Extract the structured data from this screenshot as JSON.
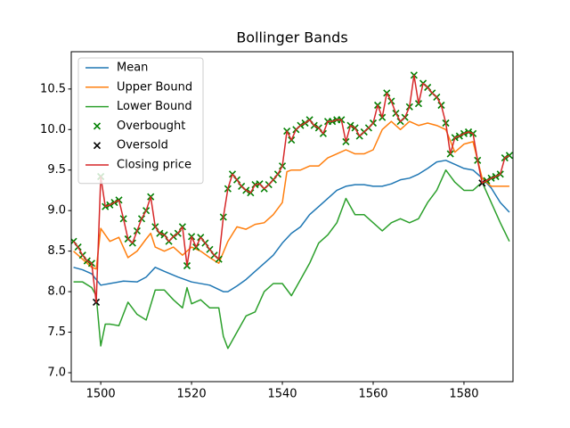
{
  "chart_data": {
    "type": "line",
    "title": "Bollinger Bands",
    "xlim": [
      1493.5,
      1590.8
    ],
    "ylim": [
      6.89,
      10.96
    ],
    "xticks": [
      1500,
      1520,
      1540,
      1560,
      1580
    ],
    "yticks": [
      {
        "value": 7.0,
        "label": "7.0"
      },
      7.5,
      {
        "value": 8.0,
        "label": "8.0"
      },
      8.5,
      {
        "value": 9.0,
        "label": "9.0"
      },
      9.5,
      {
        "value": 10.0,
        "label": "10.0"
      },
      10.5
    ],
    "legend": "upper left",
    "grid": false,
    "series": [
      {
        "name": "Mean",
        "type": "line",
        "color": "#1f77b4",
        "x": [
          1494,
          1496,
          1498,
          1500,
          1502,
          1505,
          1508,
          1510,
          1512,
          1514,
          1517,
          1520,
          1524,
          1527,
          1528,
          1530,
          1532,
          1534,
          1536,
          1538,
          1540,
          1542,
          1544,
          1546,
          1548,
          1550,
          1552,
          1554,
          1556,
          1558,
          1560,
          1562,
          1564,
          1566,
          1568,
          1570,
          1572,
          1574,
          1576,
          1578,
          1580,
          1582,
          1584,
          1586,
          1588,
          1590
        ],
        "values": [
          8.3,
          8.27,
          8.22,
          8.08,
          8.1,
          8.13,
          8.12,
          8.18,
          8.3,
          8.25,
          8.18,
          8.12,
          8.08,
          8.0,
          8.0,
          8.07,
          8.15,
          8.25,
          8.35,
          8.45,
          8.6,
          8.72,
          8.8,
          8.95,
          9.05,
          9.15,
          9.25,
          9.3,
          9.32,
          9.32,
          9.3,
          9.3,
          9.33,
          9.38,
          9.4,
          9.45,
          9.52,
          9.6,
          9.62,
          9.57,
          9.52,
          9.5,
          9.4,
          9.28,
          9.1,
          8.98
        ]
      },
      {
        "name": "Upper Bound",
        "type": "line",
        "color": "#ff7f0e",
        "x": [
          1494,
          1496,
          1498,
          1499,
          1500,
          1502,
          1504,
          1506,
          1508,
          1510,
          1511,
          1512,
          1514,
          1516,
          1518,
          1520,
          1522,
          1524,
          1526,
          1528,
          1530,
          1532,
          1534,
          1536,
          1538,
          1540,
          1541,
          1542,
          1544,
          1546,
          1548,
          1550,
          1552,
          1554,
          1556,
          1558,
          1560,
          1562,
          1564,
          1566,
          1568,
          1570,
          1572,
          1574,
          1576,
          1578,
          1580,
          1582,
          1584,
          1586,
          1588,
          1590
        ],
        "values": [
          8.5,
          8.4,
          8.3,
          8.28,
          8.78,
          8.62,
          8.67,
          8.42,
          8.5,
          8.65,
          8.72,
          8.55,
          8.5,
          8.55,
          8.45,
          8.55,
          8.5,
          8.42,
          8.35,
          8.62,
          8.8,
          8.77,
          8.83,
          8.85,
          8.95,
          9.1,
          9.48,
          9.5,
          9.5,
          9.55,
          9.55,
          9.65,
          9.7,
          9.75,
          9.7,
          9.7,
          9.75,
          10.0,
          10.1,
          10.0,
          10.1,
          10.05,
          10.08,
          10.05,
          10.0,
          9.72,
          9.82,
          9.85,
          9.4,
          9.3,
          9.3,
          9.3
        ]
      },
      {
        "name": "Lower Bound",
        "type": "line",
        "color": "#2ca02c",
        "x": [
          1494,
          1496,
          1498,
          1499,
          1500,
          1501,
          1502,
          1504,
          1506,
          1508,
          1510,
          1512,
          1514,
          1516,
          1518,
          1519,
          1520,
          1522,
          1524,
          1526,
          1527,
          1528,
          1530,
          1532,
          1534,
          1536,
          1538,
          1540,
          1542,
          1544,
          1546,
          1548,
          1550,
          1552,
          1554,
          1556,
          1558,
          1560,
          1562,
          1564,
          1566,
          1568,
          1570,
          1572,
          1574,
          1576,
          1578,
          1580,
          1582,
          1584,
          1586,
          1588,
          1590
        ],
        "values": [
          8.12,
          8.12,
          8.05,
          7.95,
          7.33,
          7.6,
          7.6,
          7.58,
          7.87,
          7.72,
          7.65,
          8.02,
          8.02,
          7.9,
          7.8,
          8.05,
          7.85,
          7.9,
          7.8,
          7.8,
          7.45,
          7.3,
          7.5,
          7.7,
          7.75,
          8.0,
          8.1,
          8.1,
          7.95,
          8.15,
          8.35,
          8.6,
          8.7,
          8.85,
          9.15,
          8.95,
          8.95,
          8.85,
          8.75,
          8.85,
          8.9,
          8.85,
          8.9,
          9.1,
          9.25,
          9.5,
          9.35,
          9.25,
          9.25,
          9.35,
          9.1,
          8.85,
          8.62
        ]
      },
      {
        "name": "Overbought",
        "type": "scatter",
        "color": "#008000",
        "x": [
          1494,
          1495,
          1496,
          1497,
          1498,
          1500,
          1501,
          1502,
          1503,
          1504,
          1505,
          1506,
          1507,
          1508,
          1509,
          1510,
          1511,
          1512,
          1513,
          1514,
          1515,
          1516,
          1517,
          1518,
          1519,
          1520,
          1521,
          1522,
          1523,
          1524,
          1525,
          1526,
          1527,
          1528,
          1529,
          1530,
          1531,
          1532,
          1533,
          1534,
          1535,
          1536,
          1537,
          1538,
          1539,
          1540,
          1541,
          1542,
          1543,
          1544,
          1545,
          1546,
          1547,
          1548,
          1549,
          1550,
          1551,
          1552,
          1553,
          1554,
          1555,
          1556,
          1557,
          1558,
          1559,
          1560,
          1561,
          1562,
          1563,
          1564,
          1565,
          1566,
          1567,
          1568,
          1569,
          1570,
          1571,
          1572,
          1573,
          1574,
          1575,
          1576,
          1577,
          1578,
          1579,
          1580,
          1581,
          1582,
          1583,
          1585,
          1586,
          1587,
          1588,
          1589,
          1590
        ],
        "values": [
          8.62,
          8.55,
          8.45,
          8.38,
          8.35,
          9.42,
          9.05,
          9.07,
          9.1,
          9.13,
          8.9,
          8.65,
          8.6,
          8.75,
          8.9,
          9.0,
          9.17,
          8.8,
          8.72,
          8.7,
          8.62,
          8.68,
          8.72,
          8.8,
          8.32,
          8.68,
          8.55,
          8.67,
          8.6,
          8.52,
          8.45,
          8.4,
          8.92,
          9.27,
          9.45,
          9.38,
          9.3,
          9.25,
          9.22,
          9.32,
          9.33,
          9.27,
          9.32,
          9.38,
          9.45,
          9.55,
          9.98,
          9.87,
          10.0,
          10.05,
          10.08,
          10.12,
          10.05,
          10.02,
          9.95,
          10.1,
          10.1,
          10.12,
          10.12,
          9.85,
          10.05,
          10.02,
          9.92,
          9.97,
          10.02,
          10.08,
          10.3,
          10.15,
          10.45,
          10.35,
          10.2,
          10.1,
          10.15,
          10.28,
          10.67,
          10.32,
          10.57,
          10.52,
          10.45,
          10.4,
          10.3,
          10.08,
          9.7,
          9.9,
          9.92,
          9.95,
          9.97,
          9.95,
          9.62,
          9.37,
          9.4,
          9.42,
          9.45,
          9.65,
          9.68
        ]
      },
      {
        "name": "Oversold",
        "type": "scatter",
        "color": "#000000",
        "x": [
          1499,
          1584
        ],
        "values": [
          7.87,
          9.34
        ]
      },
      {
        "name": "Closing price",
        "type": "line",
        "color": "#d62728",
        "x": [
          1494,
          1495,
          1496,
          1497,
          1498,
          1499,
          1500,
          1501,
          1502,
          1503,
          1504,
          1505,
          1506,
          1507,
          1508,
          1509,
          1510,
          1511,
          1512,
          1513,
          1514,
          1515,
          1516,
          1517,
          1518,
          1519,
          1520,
          1521,
          1522,
          1523,
          1524,
          1525,
          1526,
          1527,
          1528,
          1529,
          1530,
          1531,
          1532,
          1533,
          1534,
          1535,
          1536,
          1537,
          1538,
          1539,
          1540,
          1541,
          1542,
          1543,
          1544,
          1545,
          1546,
          1547,
          1548,
          1549,
          1550,
          1551,
          1552,
          1553,
          1554,
          1555,
          1556,
          1557,
          1558,
          1559,
          1560,
          1561,
          1562,
          1563,
          1564,
          1565,
          1566,
          1567,
          1568,
          1569,
          1570,
          1571,
          1572,
          1573,
          1574,
          1575,
          1576,
          1577,
          1578,
          1579,
          1580,
          1581,
          1582,
          1583,
          1584,
          1585,
          1586,
          1587,
          1588,
          1589,
          1590
        ],
        "values": [
          8.62,
          8.55,
          8.45,
          8.38,
          8.35,
          7.87,
          9.42,
          9.05,
          9.07,
          9.1,
          9.13,
          8.9,
          8.65,
          8.6,
          8.75,
          8.9,
          9.0,
          9.17,
          8.8,
          8.72,
          8.7,
          8.62,
          8.68,
          8.72,
          8.8,
          8.32,
          8.68,
          8.55,
          8.67,
          8.6,
          8.52,
          8.45,
          8.4,
          8.92,
          9.27,
          9.45,
          9.38,
          9.3,
          9.25,
          9.22,
          9.32,
          9.33,
          9.27,
          9.32,
          9.38,
          9.45,
          9.55,
          9.98,
          9.87,
          10.0,
          10.05,
          10.08,
          10.12,
          10.05,
          10.02,
          9.95,
          10.1,
          10.1,
          10.12,
          10.12,
          9.85,
          10.05,
          10.02,
          9.92,
          9.97,
          10.02,
          10.08,
          10.3,
          10.15,
          10.45,
          10.35,
          10.2,
          10.1,
          10.15,
          10.28,
          10.67,
          10.32,
          10.57,
          10.52,
          10.45,
          10.4,
          10.3,
          10.08,
          9.7,
          9.9,
          9.92,
          9.95,
          9.97,
          9.95,
          9.62,
          9.34,
          9.37,
          9.4,
          9.42,
          9.45,
          9.65,
          9.68
        ]
      }
    ]
  }
}
